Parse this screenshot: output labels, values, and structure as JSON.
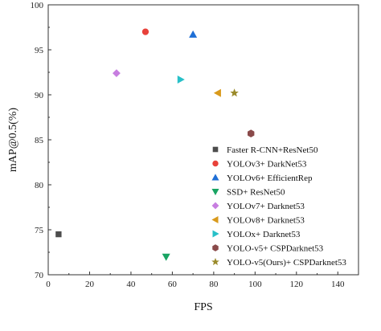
{
  "chart_data": {
    "type": "scatter",
    "title": "",
    "xlabel": "FPS",
    "ylabel": "mAP@0.5(%)",
    "xlim": [
      0,
      150
    ],
    "ylim": [
      70,
      100
    ],
    "xticks": [
      0,
      20,
      40,
      60,
      80,
      100,
      120,
      140
    ],
    "yticks": [
      70,
      75,
      80,
      85,
      90,
      95,
      100
    ],
    "grid": false,
    "legend_position": "bottom-right",
    "series": [
      {
        "name": "Faster R-CNN+ResNet50",
        "x": 5,
        "y": 74.5,
        "marker": "square",
        "color": "#4d4d4d"
      },
      {
        "name": "YOLOv3+ DarkNet53",
        "x": 47,
        "y": 97.0,
        "marker": "circle",
        "color": "#e8413a"
      },
      {
        "name": "YOLOv6+ EfficientRep",
        "x": 70,
        "y": 96.7,
        "marker": "triangle-up",
        "color": "#1f6fd6"
      },
      {
        "name": "SSD+ ResNet50",
        "x": 57,
        "y": 72.0,
        "marker": "triangle-down",
        "color": "#19a463"
      },
      {
        "name": "YOLOv7+ Darknet53",
        "x": 33,
        "y": 92.4,
        "marker": "diamond",
        "color": "#c77ee0"
      },
      {
        "name": "YOLOv8+ Darknet53",
        "x": 82,
        "y": 90.2,
        "marker": "triangle-left",
        "color": "#d99a1c"
      },
      {
        "name": "YOLOx+ Darknet53",
        "x": 64,
        "y": 91.7,
        "marker": "triangle-right",
        "color": "#27c0c8"
      },
      {
        "name": "YOLO-v5+ CSPDarknet53",
        "x": 98,
        "y": 85.7,
        "marker": "hexagon",
        "color": "#8a4a4a"
      },
      {
        "name": "YOLO-v5(Ours)+ CSPDarknet53",
        "x": 90,
        "y": 90.2,
        "marker": "star",
        "color": "#9a8a2a"
      }
    ]
  }
}
